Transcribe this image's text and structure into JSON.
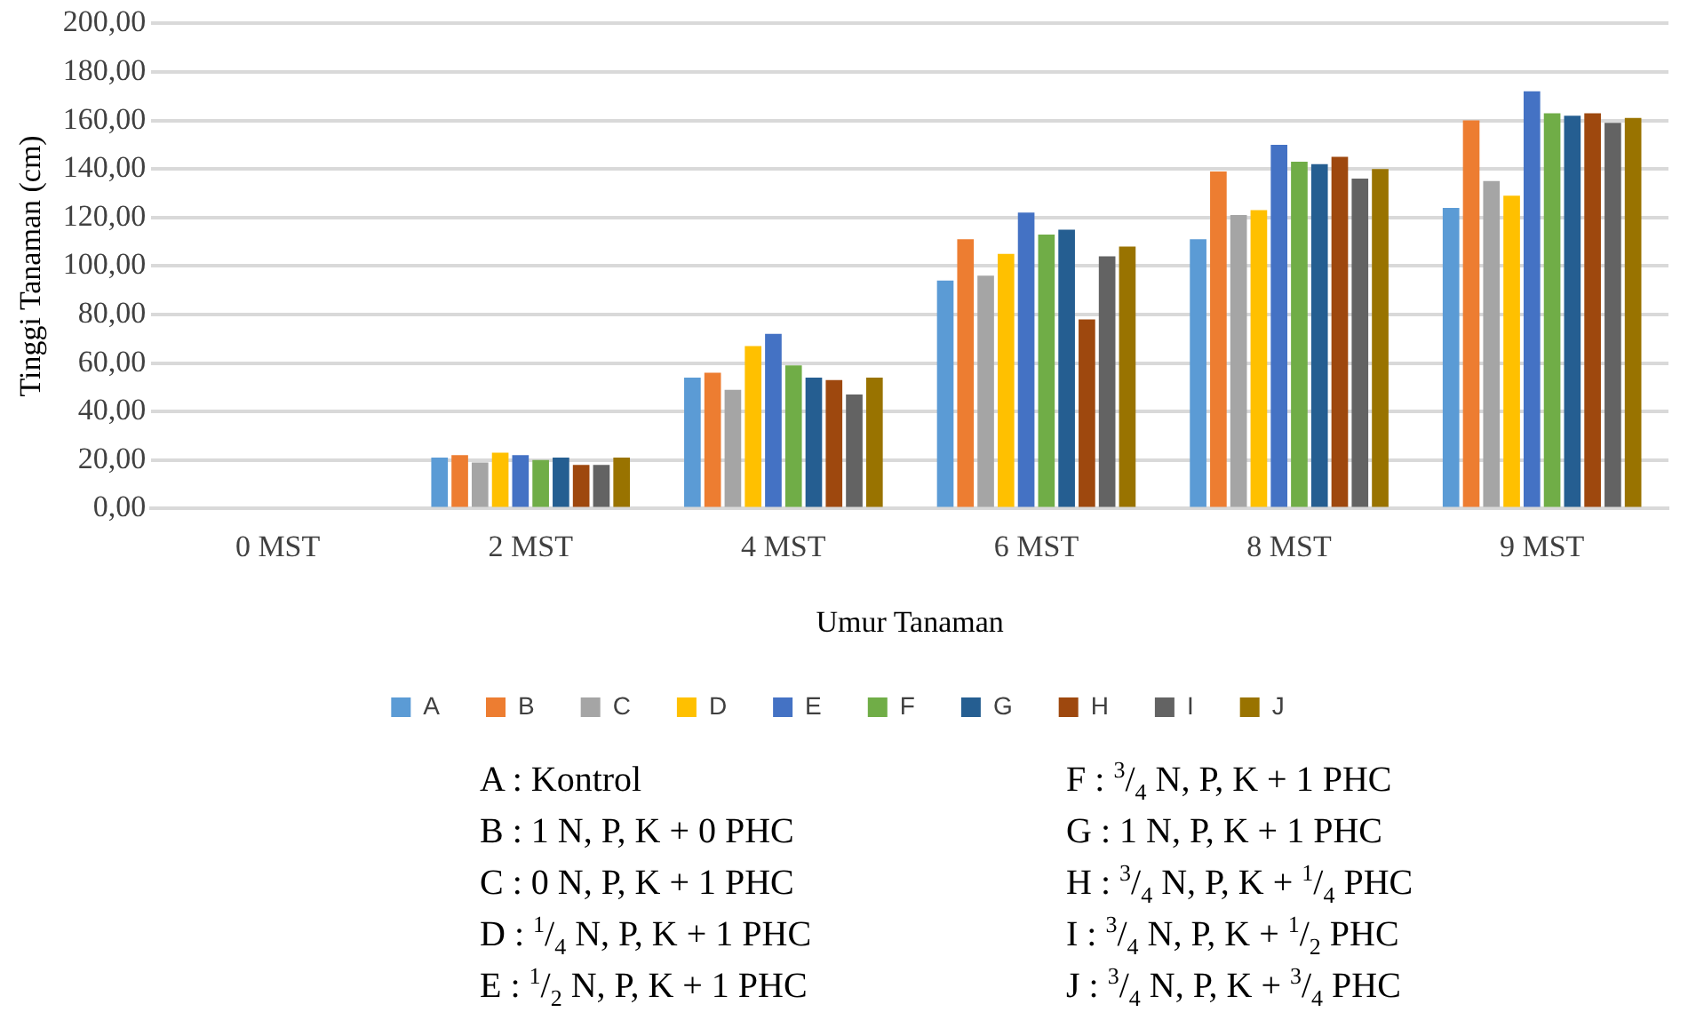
{
  "chart_data": {
    "type": "bar",
    "xlabel": "Umur Tanaman",
    "ylabel": "Tinggi Tanaman (cm)",
    "categories": [
      "0 MST",
      "2 MST",
      "4 MST",
      "6 MST",
      "8 MST",
      "9 MST"
    ],
    "series": [
      {
        "name": "A",
        "color": "#5b9bd5",
        "values": [
          0,
          21,
          54,
          94,
          111,
          124
        ]
      },
      {
        "name": "B",
        "color": "#ed7d31",
        "values": [
          0,
          22,
          56,
          111,
          139,
          160
        ]
      },
      {
        "name": "C",
        "color": "#a5a5a5",
        "values": [
          0,
          19,
          49,
          96,
          121,
          135
        ]
      },
      {
        "name": "D",
        "color": "#ffc000",
        "values": [
          0,
          23,
          67,
          105,
          123,
          129
        ]
      },
      {
        "name": "E",
        "color": "#4472c4",
        "values": [
          0,
          22,
          72,
          122,
          150,
          172
        ]
      },
      {
        "name": "F",
        "color": "#70ad47",
        "values": [
          0,
          20,
          59,
          113,
          143,
          163
        ]
      },
      {
        "name": "G",
        "color": "#255e91",
        "values": [
          0,
          21,
          54,
          115,
          142,
          162
        ]
      },
      {
        "name": "H",
        "color": "#9e480e",
        "values": [
          0,
          18,
          53,
          78,
          145,
          163
        ]
      },
      {
        "name": "I",
        "color": "#636363",
        "values": [
          0,
          18,
          47,
          104,
          136,
          159
        ]
      },
      {
        "name": "J",
        "color": "#997300",
        "values": [
          0,
          21,
          54,
          108,
          140,
          161
        ]
      }
    ],
    "ylim": [
      0,
      200
    ],
    "yticks": [
      {
        "value": 0,
        "label": "0,00"
      },
      {
        "value": 20,
        "label": "20,00"
      },
      {
        "value": 40,
        "label": "40,00"
      },
      {
        "value": 60,
        "label": "60,00"
      },
      {
        "value": 80,
        "label": "80,00"
      },
      {
        "value": 100,
        "label": "100,00"
      },
      {
        "value": 120,
        "label": "120,00"
      },
      {
        "value": 140,
        "label": "140,00"
      },
      {
        "value": 160,
        "label": "160,00"
      },
      {
        "value": 180,
        "label": "180,00"
      },
      {
        "value": 200,
        "label": "200,00"
      }
    ],
    "grid": "y",
    "legend": "bottom",
    "annotations": [
      "A : Kontrol",
      "B : 1 N, P, K + 0 PHC",
      "C : 0 N, P, K + 1 PHC",
      "D : $^{1}$/$_{4}$ N, P, K + 1 PHC",
      "E : $^{1}$/$_{2}$ N, P, K + 1 PHC",
      "F : $^{3}$/$_{4}$ N, P, K + 1 PHC",
      "G : 1 N, P, K + 1 PHC",
      "H : $^{3}$/$_{4}$ N, P, K + $^{1}$/$_{4}$ PHC",
      "I : $^{3}$/$_{4}$ N, P, K + $^{1}$/$_{2}$ PHC",
      "J : $^{3}$/$_{4}$ N, P, K + $^{3}$/$_{4}$ PHC"
    ]
  }
}
